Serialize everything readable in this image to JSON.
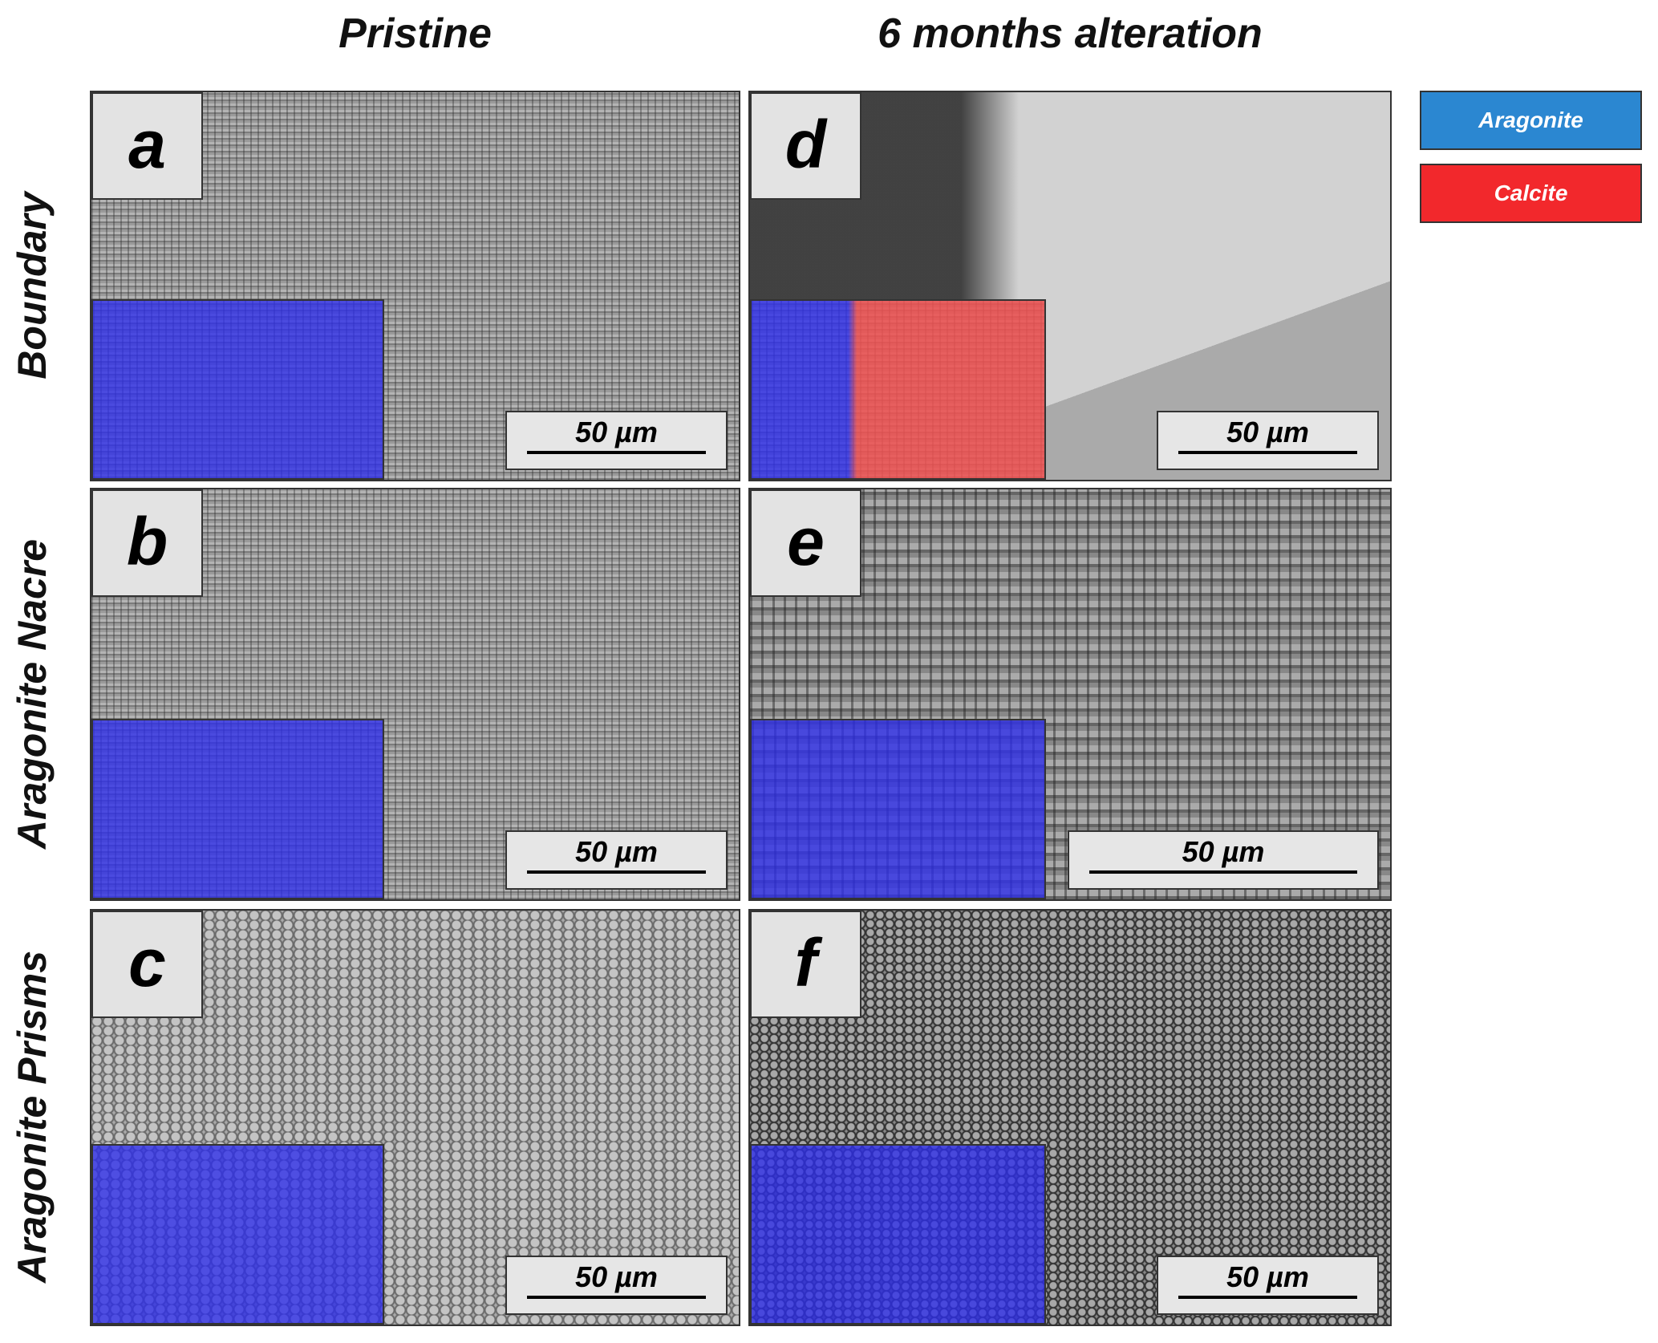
{
  "columns": [
    "Pristine",
    "6 months alteration"
  ],
  "rows": [
    "Boundary",
    "Aragonite Nacre",
    "Aragonite Prisms"
  ],
  "panels": [
    {
      "label": "a",
      "scale_bar": "50 µm"
    },
    {
      "label": "b",
      "scale_bar": "50 µm"
    },
    {
      "label": "c",
      "scale_bar": "50 µm"
    },
    {
      "label": "d",
      "scale_bar": "50 µm"
    },
    {
      "label": "e",
      "scale_bar": "50 µm"
    },
    {
      "label": "f",
      "scale_bar": "50 µm"
    }
  ],
  "legend": [
    {
      "label": "Aragonite",
      "color": "#2b87d1"
    },
    {
      "label": "Calcite",
      "color": "#f2282c"
    }
  ]
}
